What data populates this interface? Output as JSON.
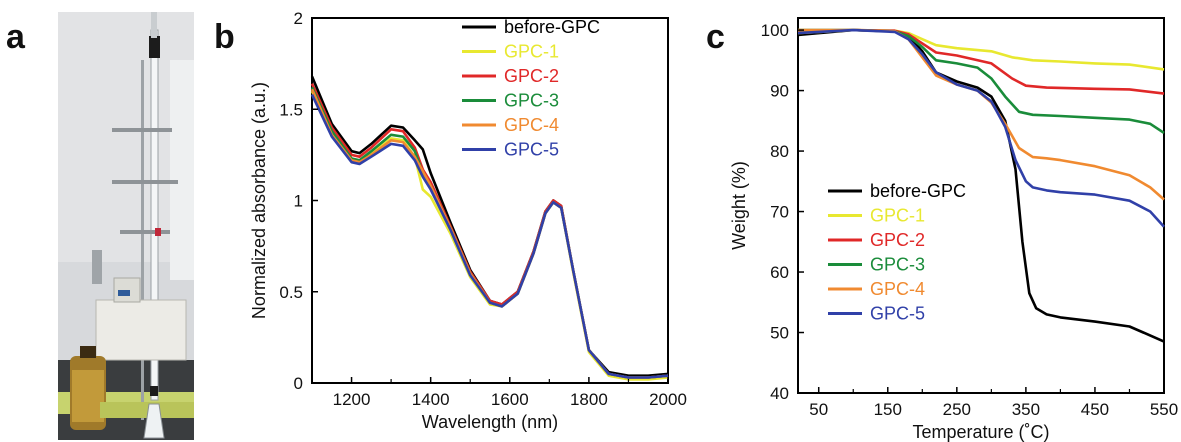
{
  "panels": {
    "a": {
      "label": "a"
    },
    "b": {
      "label": "b"
    },
    "c": {
      "label": "c"
    }
  },
  "colors": {
    "before-GPC": "#000000",
    "GPC-1": "#e8e830",
    "GPC-2": "#e02828",
    "GPC-3": "#1a8c3a",
    "GPC-4": "#f08a30",
    "GPC-5": "#3040a8"
  },
  "photo": {
    "description_icon": "apparatus-photo-icon"
  },
  "chart_data": [
    {
      "type": "line",
      "panel": "b",
      "xlabel": "Wavelength (nm)",
      "ylabel": "Normalized absorbance (a.u.)",
      "xlim": [
        1100,
        2000
      ],
      "ylim": [
        0,
        2
      ],
      "xticks": [
        1200,
        1400,
        1600,
        1800,
        2000
      ],
      "yticks": [
        0,
        0.5,
        1,
        1.5,
        2
      ],
      "ytick_labels": [
        "0",
        "0.5",
        "1",
        "1.5",
        "2"
      ],
      "legend_position": "top-right",
      "series": [
        {
          "name": "before-GPC",
          "x": [
            1100,
            1150,
            1200,
            1220,
            1250,
            1300,
            1330,
            1360,
            1380,
            1400,
            1450,
            1500,
            1550,
            1580,
            1620,
            1660,
            1690,
            1710,
            1730,
            1760,
            1800,
            1850,
            1900,
            1950,
            2000
          ],
          "y": [
            1.68,
            1.42,
            1.27,
            1.26,
            1.31,
            1.41,
            1.4,
            1.33,
            1.28,
            1.15,
            0.88,
            0.62,
            0.45,
            0.43,
            0.5,
            0.72,
            0.94,
            1.0,
            0.97,
            0.62,
            0.18,
            0.06,
            0.04,
            0.04,
            0.05
          ]
        },
        {
          "name": "GPC-1",
          "x": [
            1100,
            1150,
            1200,
            1220,
            1250,
            1300,
            1330,
            1360,
            1380,
            1400,
            1450,
            1500,
            1550,
            1580,
            1620,
            1660,
            1690,
            1710,
            1730,
            1760,
            1800,
            1850,
            1900,
            1950,
            2000
          ],
          "y": [
            1.6,
            1.38,
            1.22,
            1.21,
            1.26,
            1.34,
            1.33,
            1.24,
            1.06,
            1.02,
            0.82,
            0.58,
            0.43,
            0.42,
            0.49,
            0.71,
            0.93,
            0.99,
            0.96,
            0.61,
            0.17,
            0.04,
            0.02,
            0.02,
            0.03
          ]
        },
        {
          "name": "GPC-2",
          "x": [
            1100,
            1150,
            1200,
            1220,
            1250,
            1300,
            1330,
            1360,
            1380,
            1400,
            1450,
            1500,
            1550,
            1580,
            1620,
            1660,
            1690,
            1710,
            1730,
            1760,
            1800,
            1850,
            1900,
            1950,
            2000
          ],
          "y": [
            1.64,
            1.4,
            1.25,
            1.24,
            1.29,
            1.39,
            1.38,
            1.29,
            1.17,
            1.1,
            0.86,
            0.61,
            0.45,
            0.43,
            0.5,
            0.72,
            0.94,
            1.0,
            0.97,
            0.62,
            0.18,
            0.05,
            0.03,
            0.03,
            0.04
          ]
        },
        {
          "name": "GPC-3",
          "x": [
            1100,
            1150,
            1200,
            1220,
            1250,
            1300,
            1330,
            1360,
            1380,
            1400,
            1450,
            1500,
            1550,
            1580,
            1620,
            1660,
            1690,
            1710,
            1730,
            1760,
            1800,
            1850,
            1900,
            1950,
            2000
          ],
          "y": [
            1.62,
            1.38,
            1.23,
            1.22,
            1.27,
            1.36,
            1.35,
            1.27,
            1.15,
            1.08,
            0.85,
            0.6,
            0.44,
            0.42,
            0.49,
            0.71,
            0.93,
            0.99,
            0.96,
            0.62,
            0.18,
            0.05,
            0.03,
            0.03,
            0.04
          ]
        },
        {
          "name": "GPC-4",
          "x": [
            1100,
            1150,
            1200,
            1220,
            1250,
            1300,
            1330,
            1360,
            1380,
            1400,
            1450,
            1500,
            1550,
            1580,
            1620,
            1660,
            1690,
            1710,
            1730,
            1760,
            1800,
            1850,
            1900,
            1950,
            2000
          ],
          "y": [
            1.61,
            1.36,
            1.22,
            1.21,
            1.25,
            1.33,
            1.32,
            1.24,
            1.16,
            1.08,
            0.85,
            0.6,
            0.44,
            0.42,
            0.49,
            0.71,
            0.93,
            0.99,
            0.96,
            0.62,
            0.18,
            0.05,
            0.03,
            0.03,
            0.04
          ]
        },
        {
          "name": "GPC-5",
          "x": [
            1100,
            1150,
            1200,
            1220,
            1250,
            1300,
            1330,
            1360,
            1380,
            1400,
            1450,
            1500,
            1550,
            1580,
            1620,
            1660,
            1690,
            1710,
            1730,
            1760,
            1800,
            1850,
            1900,
            1950,
            2000
          ],
          "y": [
            1.58,
            1.35,
            1.21,
            1.2,
            1.24,
            1.31,
            1.3,
            1.22,
            1.13,
            1.06,
            0.84,
            0.59,
            0.44,
            0.42,
            0.49,
            0.71,
            0.93,
            0.99,
            0.96,
            0.62,
            0.18,
            0.05,
            0.03,
            0.03,
            0.04
          ]
        }
      ]
    },
    {
      "type": "line",
      "panel": "c",
      "xlabel": "Temperature (˚C)",
      "ylabel": "Weight (%)",
      "xlim": [
        20,
        550
      ],
      "ylim": [
        40,
        102
      ],
      "xticks": [
        50,
        150,
        250,
        350,
        450,
        550
      ],
      "yticks": [
        40,
        50,
        60,
        70,
        80,
        90,
        100
      ],
      "legend_position": "bottom-left",
      "series": [
        {
          "name": "before-GPC",
          "x": [
            20,
            100,
            160,
            180,
            200,
            220,
            250,
            280,
            300,
            320,
            335,
            345,
            355,
            365,
            380,
            400,
            450,
            500,
            520,
            550
          ],
          "y": [
            99.2,
            100,
            99.8,
            99,
            96.5,
            93,
            91.5,
            90.5,
            89,
            85,
            77,
            65,
            56.5,
            54,
            53,
            52.5,
            51.8,
            51,
            50,
            48.5
          ]
        },
        {
          "name": "GPC-1",
          "x": [
            20,
            100,
            160,
            180,
            200,
            220,
            250,
            300,
            330,
            360,
            400,
            450,
            500,
            550
          ],
          "y": [
            99.5,
            100,
            99.9,
            99.5,
            98.5,
            97.5,
            97,
            96.5,
            95.5,
            95,
            94.8,
            94.5,
            94.3,
            93.5
          ]
        },
        {
          "name": "GPC-2",
          "x": [
            20,
            100,
            160,
            180,
            200,
            220,
            250,
            300,
            330,
            350,
            380,
            450,
            500,
            550
          ],
          "y": [
            99.8,
            100,
            99.9,
            99.3,
            97.8,
            96.3,
            95.8,
            94.5,
            92,
            90.8,
            90.5,
            90.3,
            90.2,
            89.5
          ]
        },
        {
          "name": "GPC-3",
          "x": [
            20,
            100,
            160,
            180,
            200,
            220,
            250,
            280,
            300,
            320,
            340,
            360,
            400,
            450,
            500,
            530,
            550
          ],
          "y": [
            100,
            100,
            99.8,
            99,
            97.2,
            95,
            94.5,
            93.8,
            92,
            89,
            86.5,
            86,
            85.8,
            85.5,
            85.2,
            84.5,
            83
          ]
        },
        {
          "name": "GPC-4",
          "x": [
            20,
            100,
            160,
            180,
            200,
            220,
            250,
            280,
            300,
            320,
            340,
            360,
            380,
            400,
            450,
            500,
            530,
            550
          ],
          "y": [
            100,
            100,
            99.8,
            98.5,
            95.5,
            92.5,
            91,
            90,
            88,
            84.5,
            80.5,
            79,
            78.8,
            78.5,
            77.5,
            76,
            74,
            72
          ]
        },
        {
          "name": "GPC-5",
          "x": [
            20,
            100,
            160,
            180,
            200,
            220,
            250,
            280,
            300,
            320,
            335,
            350,
            360,
            380,
            400,
            450,
            500,
            530,
            550
          ],
          "y": [
            99.5,
            100,
            99.7,
            98.5,
            96,
            93,
            91,
            90,
            88.2,
            84,
            78.5,
            75,
            74,
            73.5,
            73.2,
            72.8,
            71.8,
            70,
            67.5
          ]
        }
      ]
    }
  ]
}
